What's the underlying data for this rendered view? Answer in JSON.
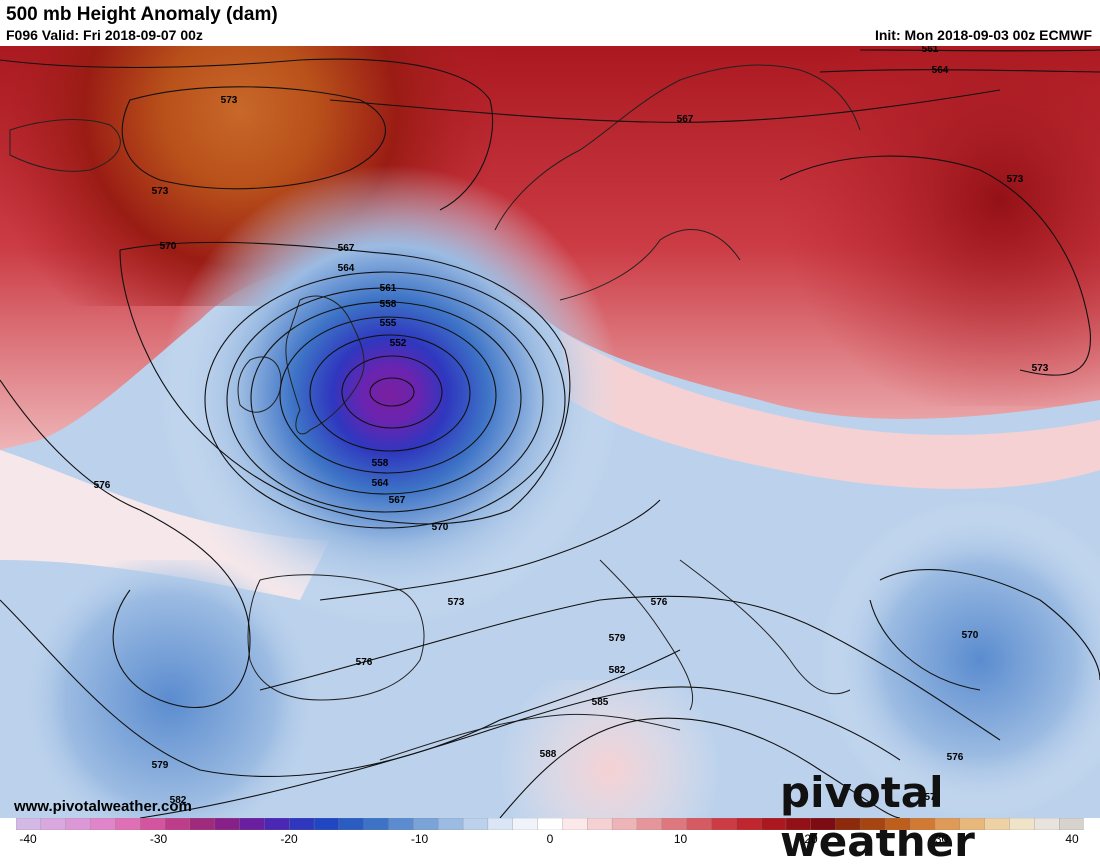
{
  "header": {
    "title": "500 mb Height Anomaly (dam)",
    "valid": "F096 Valid: Fri 2018-09-07 00z",
    "init": "Init: Mon 2018-09-03 00z ECMWF"
  },
  "watermark": {
    "url": "www.pivotalweather.com",
    "brand": "pivotal weather"
  },
  "colorbar": {
    "ticks": [
      "-40",
      "-30",
      "-20",
      "-10",
      "0",
      "10",
      "20",
      "30",
      "40"
    ],
    "colors": [
      "#d4b8e6",
      "#d8a8de",
      "#dc98d6",
      "#e085c9",
      "#e070b5",
      "#d3559f",
      "#bd3d8a",
      "#a02a7c",
      "#88208a",
      "#6a1fa0",
      "#4a27b4",
      "#2f37bf",
      "#2146c2",
      "#2a5cc2",
      "#3d73c6",
      "#5b8ccf",
      "#7aa3d8",
      "#9bbbe2",
      "#bcd2ec",
      "#dae6f5",
      "#f0f4fa",
      "#ffffff",
      "#fbe9ea",
      "#f5d1d3",
      "#eeb5b8",
      "#e6969b",
      "#de787e",
      "#d55a61",
      "#cc3c45",
      "#c0262f",
      "#ab1820",
      "#931116",
      "#7c0c12",
      "#8e2a0c",
      "#a64412",
      "#be5e1c",
      "#d07a34",
      "#de9a56",
      "#e8b77c",
      "#eed1a4",
      "#f0e3c8",
      "#e8e3dc",
      "#d6d2cd"
    ]
  },
  "contours": [
    {
      "label": "573"
    },
    {
      "label": "573"
    },
    {
      "label": "570"
    },
    {
      "label": "567"
    },
    {
      "label": "564"
    },
    {
      "label": "561"
    },
    {
      "label": "558"
    },
    {
      "label": "555"
    },
    {
      "label": "552"
    },
    {
      "label": "558"
    },
    {
      "label": "564"
    },
    {
      "label": "567"
    },
    {
      "label": "570"
    },
    {
      "label": "576"
    },
    {
      "label": "573"
    },
    {
      "label": "576"
    },
    {
      "label": "576"
    },
    {
      "label": "579"
    },
    {
      "label": "582"
    },
    {
      "label": "585"
    },
    {
      "label": "588"
    },
    {
      "label": "579"
    },
    {
      "label": "582"
    },
    {
      "label": "570"
    },
    {
      "label": "576"
    },
    {
      "label": "573"
    },
    {
      "label": "573"
    },
    {
      "label": "567"
    },
    {
      "label": "564"
    },
    {
      "label": "561"
    },
    {
      "label": "57"
    }
  ],
  "legend_colors": {
    "anomaly_low": "#6a1fa0",
    "anomaly_high": "#931116",
    "neutral": "#ffffff"
  }
}
